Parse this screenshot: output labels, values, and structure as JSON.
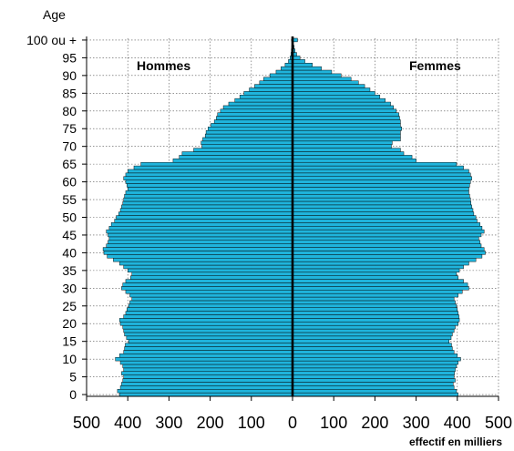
{
  "chart_data": {
    "type": "bar",
    "subtype": "population-pyramid",
    "y_axis_title": "Age",
    "x_axis_title": "effectif en milliers",
    "left_series_label": "Hommes",
    "right_series_label": "Femmes",
    "bar_color": "#1FB4DC",
    "bar_edge_color": "#000000",
    "axis_color": "#000000",
    "grid": true,
    "x_range": [
      -500,
      500
    ],
    "x_ticks": [
      500,
      400,
      300,
      200,
      100,
      0,
      100,
      200,
      300,
      400,
      500
    ],
    "age_range": [
      0,
      100
    ],
    "age_ticks": [
      "0",
      "5",
      "10",
      "15",
      "20",
      "25",
      "30",
      "35",
      "40",
      "45",
      "50",
      "55",
      "60",
      "65",
      "70",
      "75",
      "80",
      "85",
      "90",
      "95",
      "100 ou +"
    ],
    "ages": [
      0,
      1,
      2,
      3,
      4,
      5,
      6,
      7,
      8,
      9,
      10,
      11,
      12,
      13,
      14,
      15,
      16,
      17,
      18,
      19,
      20,
      21,
      22,
      23,
      24,
      25,
      26,
      27,
      28,
      29,
      30,
      31,
      32,
      33,
      34,
      35,
      36,
      37,
      38,
      39,
      40,
      41,
      42,
      43,
      44,
      45,
      46,
      47,
      48,
      49,
      50,
      51,
      52,
      53,
      54,
      55,
      56,
      57,
      58,
      59,
      60,
      61,
      62,
      63,
      64,
      65,
      66,
      67,
      68,
      69,
      70,
      71,
      72,
      73,
      74,
      75,
      76,
      77,
      78,
      79,
      80,
      81,
      82,
      83,
      84,
      85,
      86,
      87,
      88,
      89,
      90,
      91,
      92,
      93,
      94,
      95,
      96,
      97,
      98,
      99,
      100
    ],
    "hommes": [
      420,
      425,
      418,
      415,
      412,
      410,
      415,
      410,
      412,
      418,
      430,
      420,
      410,
      408,
      406,
      398,
      403,
      408,
      410,
      412,
      418,
      420,
      410,
      405,
      402,
      398,
      395,
      390,
      395,
      405,
      415,
      412,
      405,
      393,
      390,
      400,
      410,
      420,
      435,
      450,
      458,
      460,
      452,
      448,
      445,
      448,
      452,
      445,
      440,
      432,
      428,
      422,
      418,
      415,
      412,
      410,
      408,
      405,
      400,
      402,
      405,
      410,
      405,
      400,
      385,
      368,
      290,
      275,
      268,
      240,
      220,
      222,
      218,
      212,
      210,
      205,
      198,
      190,
      185,
      182,
      175,
      168,
      155,
      140,
      128,
      118,
      105,
      92,
      80,
      70,
      55,
      40,
      28,
      18,
      10,
      6,
      4,
      3,
      2,
      1,
      2
    ],
    "femmes": [
      402,
      398,
      392,
      390,
      395,
      392,
      393,
      395,
      398,
      402,
      408,
      400,
      392,
      388,
      386,
      380,
      385,
      388,
      392,
      395,
      402,
      405,
      404,
      402,
      400,
      398,
      395,
      392,
      402,
      412,
      428,
      425,
      415,
      402,
      398,
      405,
      415,
      428,
      445,
      460,
      468,
      465,
      458,
      455,
      452,
      458,
      465,
      460,
      455,
      448,
      445,
      440,
      438,
      435,
      433,
      432,
      430,
      428,
      428,
      430,
      432,
      435,
      432,
      428,
      415,
      398,
      300,
      290,
      270,
      262,
      240,
      242,
      262,
      262,
      262,
      265,
      262,
      262,
      260,
      258,
      252,
      245,
      238,
      225,
      212,
      200,
      188,
      175,
      160,
      142,
      118,
      95,
      70,
      48,
      30,
      18,
      10,
      6,
      4,
      2,
      12
    ]
  }
}
